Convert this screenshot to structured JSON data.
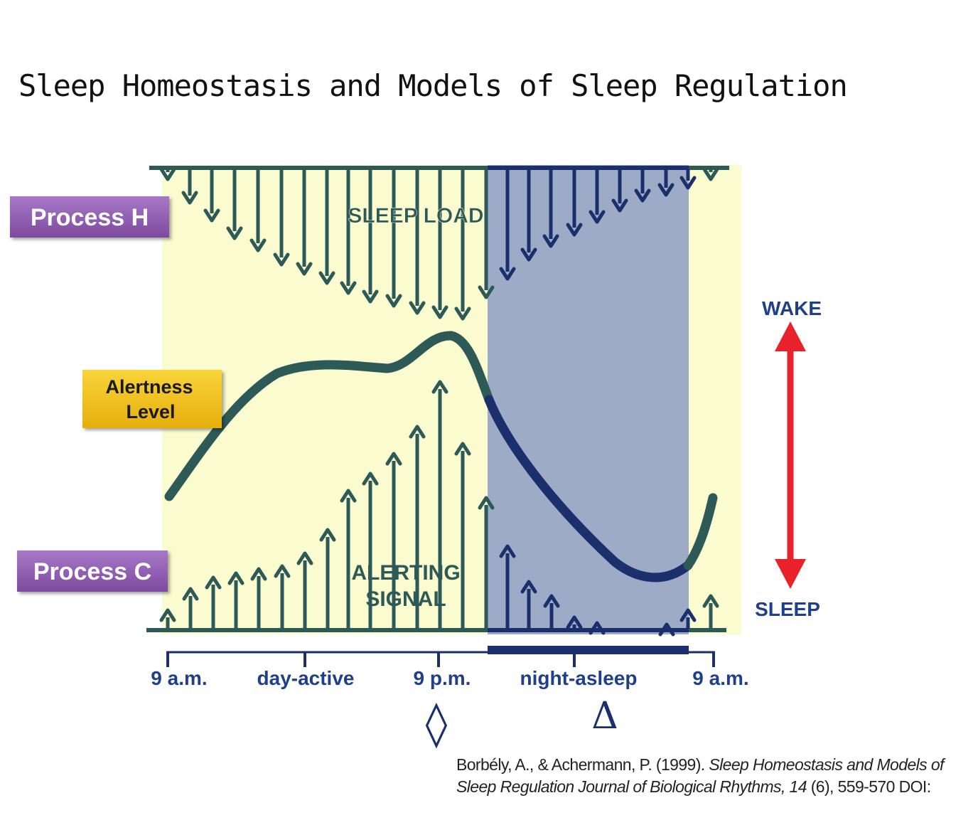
{
  "title": "Sleep Homeostasis and Models of Sleep Regulation",
  "labels": {
    "process_h": "Process H",
    "process_c": "Process C",
    "alertness_line1": "Alertness",
    "alertness_line2": "Level",
    "sleep_load": "SLEEP LOAD",
    "alerting_line1": "ALERTING",
    "alerting_line2": "SIGNAL",
    "wake": "WAKE",
    "sleep": "SLEEP"
  },
  "axis": {
    "ticks": [
      "9 a.m.",
      "day-active",
      "9 p.m.",
      "night-asleep",
      "9 a.m."
    ]
  },
  "markers": {
    "diamond": "◊",
    "delta": "Δ"
  },
  "citation": {
    "authors": "Borbély, A., & Achermann, P. (1999). ",
    "title": "Sleep Homeostasis and Models of Sleep Regulation ",
    "journal": "Journal of Biological Rhythms, 14",
    "rest": " (6), 559-570 DOI:"
  },
  "colors": {
    "day_background": "#fbfbd0",
    "night_background": "#9eabc7",
    "arrow_day": "#2d5a57",
    "arrow_night": "#1a2f6b",
    "alertness_curve_day": "#2d5a57",
    "alertness_curve_night": "#1a2f6b",
    "process_box": "#8e5bb0",
    "alertness_box": "#f2c21c",
    "wake_sleep_text": "#1f3f8a",
    "wake_sleep_arrow": "#e8222a"
  }
}
